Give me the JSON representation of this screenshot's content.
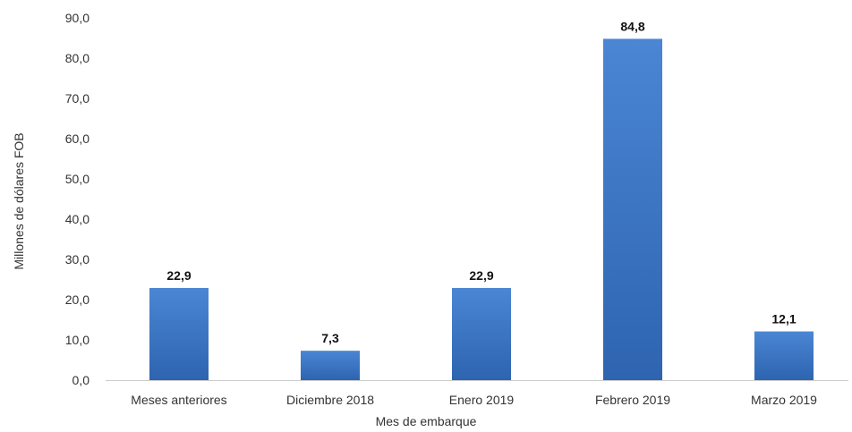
{
  "chart_data": {
    "type": "bar",
    "categories": [
      "Meses anteriores",
      "Diciembre 2018",
      "Enero 2019",
      "Febrero 2019",
      "Marzo 2019"
    ],
    "values": [
      22.9,
      7.3,
      22.9,
      84.8,
      12.1
    ],
    "data_labels": [
      "22,9",
      "7,3",
      "22,9",
      "84,8",
      "12,1"
    ],
    "title": "",
    "xlabel": "Mes de embarque",
    "ylabel": "Millones de dólares FOB",
    "ylim": [
      0,
      90
    ],
    "yticks": [
      "0,0",
      "10,0",
      "20,0",
      "30,0",
      "40,0",
      "50,0",
      "60,0",
      "70,0",
      "80,0",
      "90,0"
    ],
    "grid": false,
    "legend": "none",
    "colors": {
      "bar_top": "#4a86d4",
      "bar_bottom": "#2e64b0"
    }
  }
}
